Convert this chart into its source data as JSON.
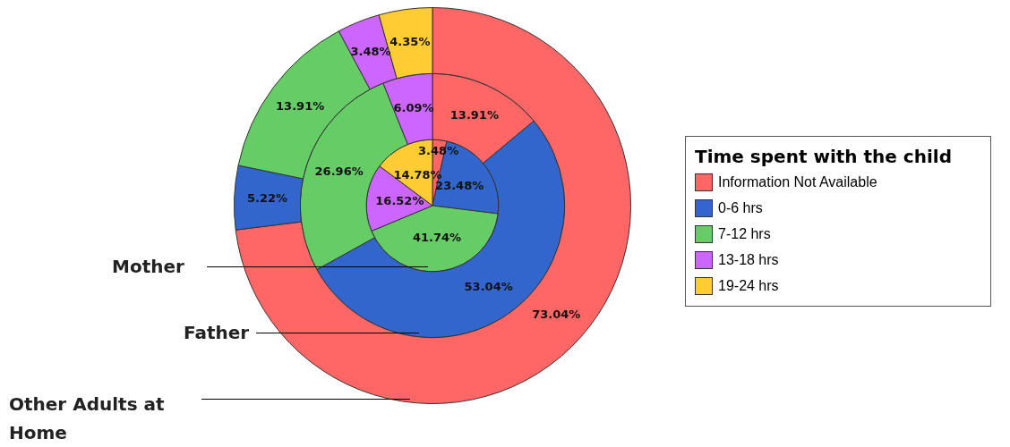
{
  "chart_data": {
    "type": "donut",
    "legend_title": "Time spent with the child",
    "legend": "right",
    "categories": [
      "Information Not Available",
      "0-6 hrs",
      "7-12 hrs",
      "13-18 hrs",
      "19-24 hrs"
    ],
    "colors": [
      "#ff6666",
      "#3366cc",
      "#66cc66",
      "#cc66ff",
      "#ffcc33"
    ],
    "series": [
      {
        "name": "Mother",
        "values": [
          3.48,
          23.48,
          41.74,
          16.52,
          14.78
        ],
        "value_labels": [
          "3.48%",
          "23.48%",
          "41.74%",
          "16.52%",
          "14.78%"
        ]
      },
      {
        "name": "Father",
        "values": [
          13.91,
          53.04,
          26.96,
          6.09,
          0
        ],
        "value_labels": [
          "13.91%",
          "53.04%",
          "26.96%",
          "6.09%",
          null
        ]
      },
      {
        "name": "Other Adults at Home",
        "values": [
          73.04,
          5.22,
          13.91,
          3.48,
          4.35
        ],
        "value_labels": [
          "73.04%",
          "5.22%",
          "13.91%",
          "3.48%",
          "4.35%"
        ]
      }
    ]
  }
}
